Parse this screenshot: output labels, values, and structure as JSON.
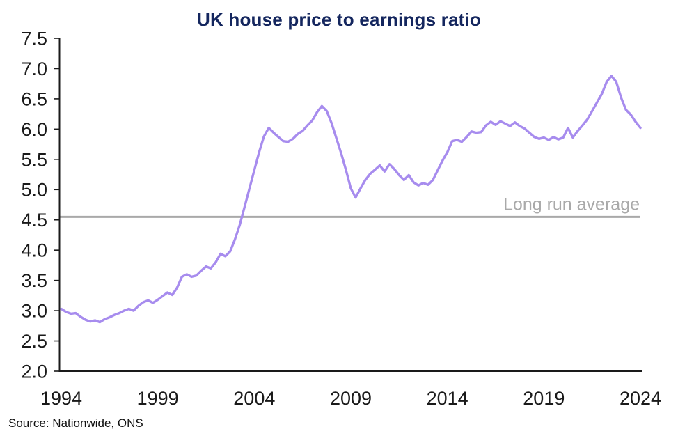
{
  "header": {
    "title": "UK house price to earnings ratio",
    "title_color": "#14265e"
  },
  "footer": {
    "source": "Source: Nationwide, ONS"
  },
  "chart_data": {
    "type": "line",
    "title": "UK house price to earnings ratio",
    "xlabel": "",
    "ylabel": "",
    "xlim": [
      1994,
      2024
    ],
    "ylim": [
      2.0,
      7.5
    ],
    "grid": false,
    "legend_position": "none",
    "x_ticks": [
      1994,
      1999,
      2004,
      2009,
      2014,
      2019,
      2024
    ],
    "y_ticks": [
      2.0,
      2.5,
      3.0,
      3.5,
      4.0,
      4.5,
      5.0,
      5.5,
      6.0,
      6.5,
      7.0,
      7.5
    ],
    "x_start": 1994,
    "x_step": 0.25,
    "axis_color": "#1a1a1a",
    "tick_label_color": "#1a1a1a",
    "series": [
      {
        "name": "UK house price to earnings ratio",
        "color": "#a78cee",
        "values": [
          3.03,
          2.98,
          2.95,
          2.96,
          2.9,
          2.85,
          2.82,
          2.84,
          2.81,
          2.86,
          2.89,
          2.93,
          2.96,
          3.0,
          3.03,
          3.0,
          3.08,
          3.14,
          3.17,
          3.13,
          3.18,
          3.24,
          3.3,
          3.26,
          3.38,
          3.56,
          3.6,
          3.56,
          3.58,
          3.66,
          3.73,
          3.7,
          3.8,
          3.94,
          3.9,
          3.98,
          4.18,
          4.42,
          4.72,
          5.02,
          5.32,
          5.62,
          5.88,
          6.02,
          5.94,
          5.87,
          5.8,
          5.79,
          5.84,
          5.92,
          5.97,
          6.06,
          6.14,
          6.28,
          6.38,
          6.3,
          6.1,
          5.85,
          5.6,
          5.32,
          5.02,
          4.87,
          5.02,
          5.16,
          5.26,
          5.33,
          5.4,
          5.3,
          5.42,
          5.34,
          5.24,
          5.16,
          5.24,
          5.12,
          5.07,
          5.11,
          5.08,
          5.16,
          5.32,
          5.48,
          5.62,
          5.8,
          5.82,
          5.79,
          5.87,
          5.96,
          5.94,
          5.95,
          6.06,
          6.12,
          6.07,
          6.13,
          6.09,
          6.05,
          6.11,
          6.05,
          6.01,
          5.94,
          5.87,
          5.84,
          5.86,
          5.82,
          5.87,
          5.83,
          5.86,
          6.02,
          5.86,
          5.97,
          6.06,
          6.16,
          6.3,
          6.44,
          6.58,
          6.78,
          6.88,
          6.78,
          6.52,
          6.32,
          6.24,
          6.12,
          6.02
        ]
      }
    ],
    "reference_line": {
      "label": "Long run average",
      "value": 4.55,
      "color": "#a9a9a9"
    },
    "source": "Source: Nationwide, ONS"
  }
}
